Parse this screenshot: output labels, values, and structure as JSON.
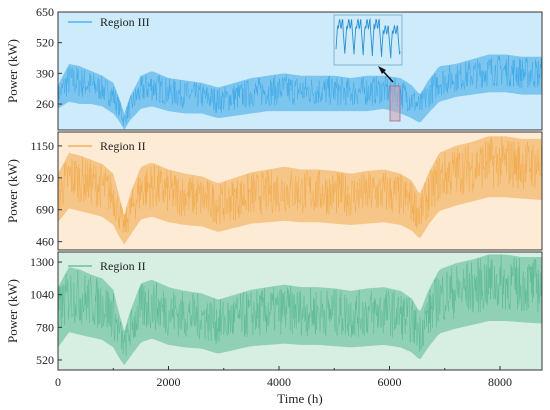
{
  "chart_data": [
    {
      "type": "area",
      "legend": "Region III",
      "legend_position": "top-left",
      "ylabel": "Power (kW)",
      "yticks": [
        260,
        390,
        520,
        650
      ],
      "ylim": [
        150,
        650
      ],
      "xlim": [
        0,
        8760
      ],
      "background_color": "#cdebfb",
      "series_color": "#3aa6e6",
      "inset": true,
      "envelope": {
        "x": [
          0,
          200,
          400,
          600,
          800,
          1000,
          1100,
          1200,
          1300,
          1500,
          1700,
          2000,
          2300,
          2600,
          2900,
          3200,
          3500,
          3800,
          4100,
          4400,
          4700,
          5000,
          5300,
          5600,
          5900,
          6200,
          6400,
          6550,
          6700,
          6900,
          7200,
          7500,
          7800,
          8100,
          8400,
          8760
        ],
        "upper": [
          340,
          430,
          420,
          400,
          380,
          350,
          290,
          220,
          290,
          380,
          400,
          370,
          360,
          350,
          330,
          350,
          370,
          380,
          390,
          380,
          380,
          380,
          370,
          380,
          380,
          370,
          340,
          300,
          360,
          420,
          430,
          450,
          470,
          470,
          460,
          460
        ],
        "lower": [
          240,
          270,
          260,
          260,
          250,
          220,
          190,
          150,
          190,
          240,
          250,
          230,
          220,
          220,
          200,
          210,
          220,
          230,
          230,
          230,
          230,
          230,
          230,
          230,
          240,
          220,
          200,
          180,
          220,
          270,
          290,
          300,
          310,
          310,
          300,
          300
        ]
      }
    },
    {
      "type": "area",
      "legend": "Region II",
      "legend_position": "top-left",
      "ylabel": "Power (kW)",
      "yticks": [
        460,
        690,
        920,
        1150
      ],
      "ylim": [
        400,
        1250
      ],
      "xlim": [
        0,
        8760
      ],
      "background_color": "#fdebd6",
      "series_color": "#f0a848",
      "inset": false,
      "envelope": {
        "x": [
          0,
          200,
          400,
          600,
          800,
          1000,
          1100,
          1200,
          1300,
          1500,
          1700,
          2000,
          2300,
          2600,
          2900,
          3200,
          3500,
          3800,
          4100,
          4400,
          4700,
          5000,
          5300,
          5600,
          5900,
          6200,
          6400,
          6550,
          6700,
          6900,
          7200,
          7500,
          7800,
          8100,
          8400,
          8760
        ],
        "upper": [
          950,
          1100,
          1080,
          1050,
          1020,
          950,
          800,
          650,
          800,
          1000,
          1030,
          980,
          950,
          930,
          880,
          920,
          960,
          980,
          1000,
          980,
          980,
          970,
          950,
          970,
          980,
          950,
          900,
          800,
          950,
          1100,
          1150,
          1180,
          1220,
          1220,
          1200,
          1200
        ],
        "lower": [
          600,
          700,
          680,
          660,
          640,
          580,
          500,
          440,
          500,
          620,
          640,
          600,
          580,
          570,
          530,
          560,
          590,
          600,
          610,
          600,
          600,
          590,
          580,
          590,
          600,
          580,
          540,
          480,
          580,
          680,
          720,
          750,
          780,
          780,
          770,
          760
        ]
      }
    },
    {
      "type": "area",
      "legend": "Region II",
      "legend_position": "top-left",
      "ylabel": "Power (kW)",
      "yticks": [
        520,
        780,
        1040,
        1300
      ],
      "ylim": [
        440,
        1380
      ],
      "xlim": [
        0,
        8760
      ],
      "xticks": [
        0,
        2000,
        4000,
        6000,
        8000
      ],
      "xlabel": "Time (h)",
      "background_color": "#d7eee3",
      "series_color": "#56b890",
      "inset": false,
      "envelope": {
        "x": [
          0,
          200,
          400,
          600,
          800,
          1000,
          1100,
          1200,
          1300,
          1500,
          1700,
          2000,
          2300,
          2600,
          2900,
          3200,
          3500,
          3800,
          4100,
          4400,
          4700,
          5000,
          5300,
          5600,
          5900,
          6200,
          6400,
          6550,
          6700,
          6900,
          7200,
          7500,
          7800,
          8100,
          8400,
          8760
        ],
        "upper": [
          1100,
          1260,
          1240,
          1200,
          1170,
          1080,
          900,
          750,
          900,
          1130,
          1160,
          1100,
          1070,
          1050,
          1000,
          1040,
          1080,
          1100,
          1120,
          1100,
          1100,
          1090,
          1070,
          1090,
          1100,
          1070,
          1010,
          900,
          1070,
          1240,
          1290,
          1320,
          1360,
          1360,
          1340,
          1340
        ],
        "lower": [
          620,
          740,
          720,
          700,
          680,
          620,
          540,
          480,
          540,
          660,
          690,
          640,
          620,
          610,
          570,
          600,
          630,
          640,
          650,
          640,
          640,
          630,
          620,
          630,
          640,
          620,
          580,
          520,
          620,
          730,
          770,
          800,
          830,
          830,
          820,
          810
        ]
      }
    }
  ]
}
